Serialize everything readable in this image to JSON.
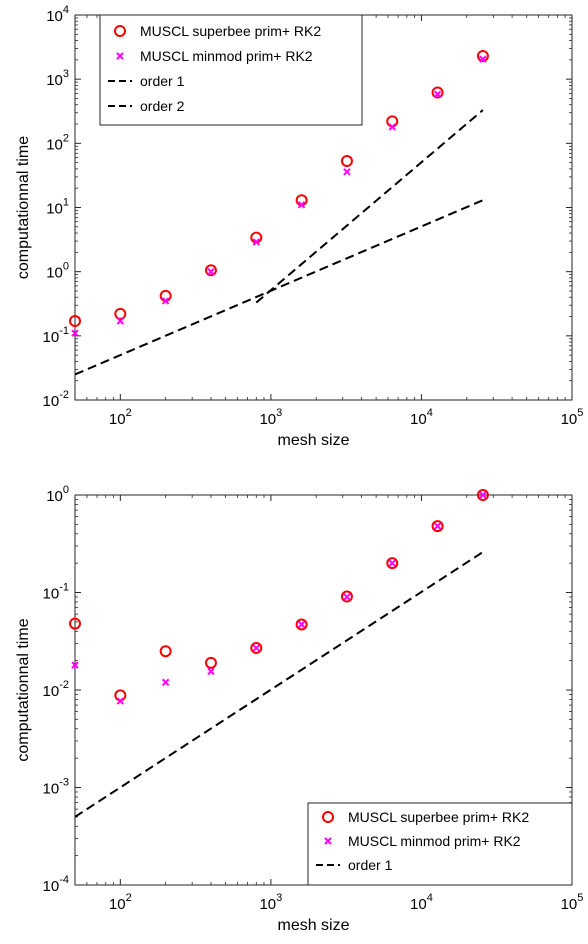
{
  "chart_data": [
    {
      "type": "scatter",
      "xlabel": "mesh size",
      "ylabel": "computationnal time",
      "xscale": "log",
      "yscale": "log",
      "xlim": [
        50,
        100000
      ],
      "ylim": [
        0.01,
        10000
      ],
      "x_ticks": [
        {
          "base": "10",
          "exp": "2",
          "value": 100
        },
        {
          "base": "10",
          "exp": "3",
          "value": 1000
        },
        {
          "base": "10",
          "exp": "4",
          "value": 10000
        },
        {
          "base": "10",
          "exp": "5",
          "value": 100000
        }
      ],
      "y_ticks": [
        {
          "base": "10",
          "exp": "-2",
          "value": 0.01
        },
        {
          "base": "10",
          "exp": "-1",
          "value": 0.1
        },
        {
          "base": "10",
          "exp": "0",
          "value": 1
        },
        {
          "base": "10",
          "exp": "1",
          "value": 10
        },
        {
          "base": "10",
          "exp": "2",
          "value": 100
        },
        {
          "base": "10",
          "exp": "3",
          "value": 1000
        },
        {
          "base": "10",
          "exp": "4",
          "value": 10000
        }
      ],
      "legend_position": "top-left",
      "series": [
        {
          "name": "MUSCL superbee prim+ RK2",
          "marker": "circle",
          "color": "#ff0000",
          "x": [
            50,
            100,
            200,
            400,
            800,
            1600,
            3200,
            6400,
            12800,
            25600
          ],
          "y": [
            0.17,
            0.22,
            0.42,
            1.05,
            3.4,
            13,
            53,
            220,
            620,
            2300
          ]
        },
        {
          "name": "MUSCL minmod prim+ RK2",
          "marker": "x",
          "color": "#ff00ff",
          "x": [
            50,
            100,
            200,
            400,
            800,
            1600,
            3200,
            6400,
            12800,
            25600
          ],
          "y": [
            0.11,
            0.17,
            0.35,
            1.0,
            2.9,
            11,
            36,
            180,
            580,
            2050
          ]
        },
        {
          "name": "order 1",
          "marker": "none",
          "line": "dashed",
          "color": "#000000",
          "x": [
            50,
            25600
          ],
          "y": [
            0.025,
            13
          ]
        },
        {
          "name": "order 2",
          "marker": "none",
          "line": "dashed",
          "color": "#000000",
          "x": [
            800,
            25600
          ],
          "y": [
            0.33,
            330
          ]
        }
      ]
    },
    {
      "type": "scatter",
      "xlabel": "mesh size",
      "ylabel": "computationnal time",
      "xscale": "log",
      "yscale": "log",
      "xlim": [
        50,
        100000
      ],
      "ylim": [
        0.0001,
        1
      ],
      "x_ticks": [
        {
          "base": "10",
          "exp": "2",
          "value": 100
        },
        {
          "base": "10",
          "exp": "3",
          "value": 1000
        },
        {
          "base": "10",
          "exp": "4",
          "value": 10000
        },
        {
          "base": "10",
          "exp": "5",
          "value": 100000
        }
      ],
      "y_ticks": [
        {
          "base": "10",
          "exp": "-4",
          "value": 0.0001
        },
        {
          "base": "10",
          "exp": "-3",
          "value": 0.001
        },
        {
          "base": "10",
          "exp": "-2",
          "value": 0.01
        },
        {
          "base": "10",
          "exp": "-1",
          "value": 0.1
        },
        {
          "base": "10",
          "exp": "0",
          "value": 1
        }
      ],
      "legend_position": "bottom-right",
      "series": [
        {
          "name": "MUSCL superbee prim+ RK2",
          "marker": "circle",
          "color": "#ff0000",
          "x": [
            50,
            100,
            200,
            400,
            800,
            1600,
            3200,
            6400,
            12800,
            25600
          ],
          "y": [
            0.048,
            0.0088,
            0.025,
            0.019,
            0.027,
            0.047,
            0.091,
            0.2,
            0.48,
            1.0
          ]
        },
        {
          "name": "MUSCL minmod prim+ RK2",
          "marker": "x",
          "color": "#ff00ff",
          "x": [
            50,
            100,
            200,
            400,
            800,
            1600,
            3200,
            6400,
            12800,
            25600
          ],
          "y": [
            0.018,
            0.0077,
            0.012,
            0.0155,
            0.027,
            0.047,
            0.09,
            0.2,
            0.48,
            1.0
          ]
        },
        {
          "name": "order 1",
          "marker": "none",
          "line": "dashed",
          "color": "#000000",
          "x": [
            50,
            25600
          ],
          "y": [
            0.0005,
            0.26
          ]
        }
      ]
    }
  ]
}
